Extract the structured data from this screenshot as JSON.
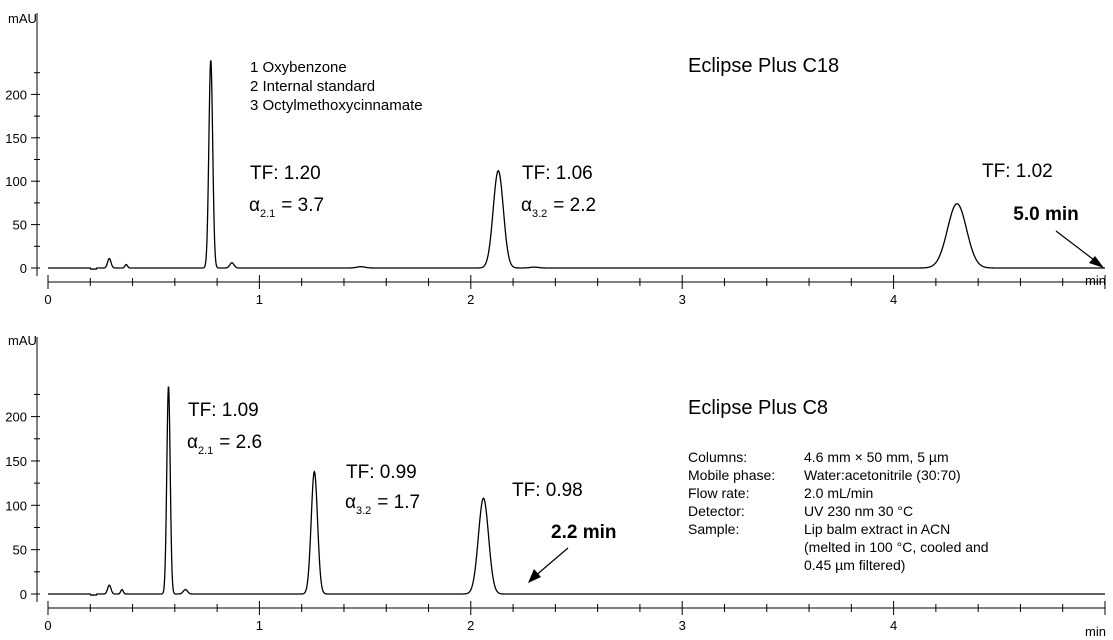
{
  "chart_data": [
    {
      "type": "line",
      "title": "Eclipse Plus C18",
      "ylabel": "mAU",
      "xlabel": "min",
      "xlim": [
        0,
        5.0
      ],
      "ylim": [
        -8,
        245
      ],
      "yticks": [
        0,
        50,
        100,
        150,
        200
      ],
      "xticks": [
        0,
        1,
        2,
        3,
        4
      ],
      "legend": [
        "1  Oxybenzone",
        "2  Internal standard",
        "3  Octylmethoxycinnamate"
      ],
      "peaks": [
        {
          "rt": 0.29,
          "height": 11,
          "width": 0.008
        },
        {
          "rt": 0.37,
          "height": 4,
          "width": 0.006
        },
        {
          "rt": 0.77,
          "height": 240,
          "width": 0.009
        },
        {
          "rt": 0.87,
          "height": 6,
          "width": 0.01
        },
        {
          "rt": 1.48,
          "height": 1.5,
          "width": 0.02
        },
        {
          "rt": 2.13,
          "height": 112,
          "width": 0.024
        },
        {
          "rt": 2.3,
          "height": 1,
          "width": 0.02
        },
        {
          "rt": 4.3,
          "height": 74,
          "width": 0.045
        }
      ],
      "annotations": [
        {
          "tf": "TF: 1.20",
          "alpha_sub": "2.1",
          "alpha_val": "=  3.7"
        },
        {
          "tf": "TF: 1.06",
          "alpha_sub": "3.2",
          "alpha_val": "=  2.2"
        },
        {
          "tf": "TF: 1.02"
        }
      ],
      "run_time": "5.0 min"
    },
    {
      "type": "line",
      "title": "Eclipse Plus C8",
      "ylabel": "mAU",
      "xlabel": "min",
      "xlim": [
        0,
        5.0
      ],
      "ylim": [
        -8,
        245
      ],
      "yticks": [
        0,
        50,
        100,
        150,
        200
      ],
      "xticks": [
        0,
        1,
        2,
        3,
        4
      ],
      "peaks": [
        {
          "rt": 0.29,
          "height": 10,
          "width": 0.008
        },
        {
          "rt": 0.35,
          "height": 5,
          "width": 0.006
        },
        {
          "rt": 0.57,
          "height": 235,
          "width": 0.008
        },
        {
          "rt": 0.65,
          "height": 5,
          "width": 0.01
        },
        {
          "rt": 1.26,
          "height": 138,
          "width": 0.015
        },
        {
          "rt": 2.06,
          "height": 108,
          "width": 0.024
        }
      ],
      "annotations": [
        {
          "tf": "TF: 1.09",
          "alpha_sub": "2.1",
          "alpha_val": "=  2.6"
        },
        {
          "tf": "TF: 0.99",
          "alpha_sub": "3.2",
          "alpha_val": "=  1.7"
        },
        {
          "tf": "TF: 0.98"
        }
      ],
      "run_time": "2.2 min",
      "conditions": [
        {
          "label": "Columns:",
          "value": "4.6 mm × 50 mm, 5 µm"
        },
        {
          "label": "Mobile phase:",
          "value": "Water:acetonitrile (30:70)"
        },
        {
          "label": "Flow rate:",
          "value": "2.0 mL/min"
        },
        {
          "label": "Detector:",
          "value": "UV 230 nm 30 °C"
        },
        {
          "label": "Sample:",
          "value": "Lip balm extract in ACN"
        },
        {
          "label": "",
          "value": "(melted in 100 °C, cooled and"
        },
        {
          "label": "",
          "value": "0.45 µm filtered)"
        }
      ]
    }
  ],
  "alpha_symbol": "α"
}
